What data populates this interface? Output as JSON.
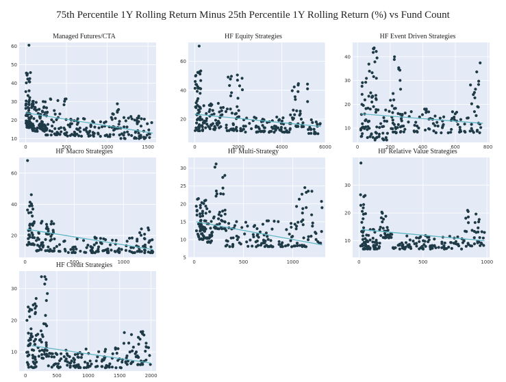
{
  "figure": {
    "title": "75th Percentile 1Y Rolling Return Minus 25th Percentile 1Y Rolling Return (%) vs Fund Count"
  },
  "colors": {
    "plot_bg": "#e5ebf6",
    "grid": "#ffffff",
    "points": "#1f3a47",
    "trend": "#5fb6c4"
  },
  "chart_data": [
    {
      "type": "scatter",
      "title": "Managed Futures/CTA",
      "xlim": [
        -80,
        1600
      ],
      "ylim": [
        8,
        62
      ],
      "xticks": [
        0,
        500,
        1000,
        1500
      ],
      "yticks": [
        10,
        20,
        30,
        40,
        50,
        60
      ],
      "trend": [
        [
          0,
          24
        ],
        [
          1560,
          13
        ]
      ],
      "clusters": [
        {
          "x": [
            0,
            60
          ],
          "y": [
            16,
            46
          ],
          "n": 60
        },
        {
          "x": 40,
          "y": 60.5,
          "n": 1
        },
        {
          "x": [
            60,
            240
          ],
          "y": [
            14,
            32
          ],
          "n": 70
        },
        {
          "x": [
            240,
            500
          ],
          "y": [
            12,
            32
          ],
          "n": 50
        },
        {
          "x": [
            500,
            1100
          ],
          "y": [
            11,
            21
          ],
          "n": 70
        },
        {
          "x": [
            1050,
            1150
          ],
          "y": [
            14,
            29
          ],
          "n": 15
        },
        {
          "x": [
            1150,
            1550
          ],
          "y": [
            10,
            23
          ],
          "n": 55
        }
      ]
    },
    {
      "type": "scatter",
      "title": "HF Equity Strategies",
      "xlim": [
        -300,
        6000
      ],
      "ylim": [
        4,
        73
      ],
      "xticks": [
        0,
        2000,
        4000,
        6000
      ],
      "yticks": [
        20,
        40,
        60
      ],
      "trend": [
        [
          0,
          23.5
        ],
        [
          5800,
          15
        ]
      ],
      "clusters": [
        {
          "x": [
            0,
            300
          ],
          "y": [
            12,
            55
          ],
          "n": 50
        },
        {
          "x": 200,
          "y": 70.5,
          "n": 1
        },
        {
          "x": [
            300,
            1200
          ],
          "y": [
            12,
            32
          ],
          "n": 50
        },
        {
          "x": [
            1200,
            2200
          ],
          "y": [
            12,
            52
          ],
          "n": 45
        },
        {
          "x": [
            2200,
            4400
          ],
          "y": [
            11,
            22
          ],
          "n": 70
        },
        {
          "x": [
            4400,
            5200
          ],
          "y": [
            14,
            45
          ],
          "n": 30
        },
        {
          "x": [
            5200,
            5800
          ],
          "y": [
            10,
            20
          ],
          "n": 20
        }
      ]
    },
    {
      "type": "scatter",
      "title": "HF Event Driven Strategies",
      "xlim": [
        -30,
        810
      ],
      "ylim": [
        4,
        46
      ],
      "xticks": [
        0,
        200,
        400,
        600,
        800
      ],
      "yticks": [
        10,
        20,
        30,
        40
      ],
      "trend": [
        [
          20,
          16
        ],
        [
          770,
          12
        ]
      ],
      "clusters": [
        {
          "x": [
            20,
            120
          ],
          "y": [
            6,
            44
          ],
          "n": 60
        },
        {
          "x": [
            100,
            190
          ],
          "y": [
            5,
            18
          ],
          "n": 25
        },
        {
          "x": [
            190,
            270
          ],
          "y": [
            8,
            43
          ],
          "n": 35
        },
        {
          "x": [
            270,
            700
          ],
          "y": [
            8,
            18
          ],
          "n": 70
        },
        {
          "x": [
            690,
            760
          ],
          "y": [
            8,
            38
          ],
          "n": 25
        }
      ]
    },
    {
      "type": "scatter",
      "title": "HF Macro Strategies",
      "xlim": [
        -60,
        1330
      ],
      "ylim": [
        6,
        70
      ],
      "xticks": [
        0,
        500,
        1000
      ],
      "yticks": [
        20,
        40,
        60
      ],
      "trend": [
        [
          20,
          24
        ],
        [
          1300,
          11
        ]
      ],
      "clusters": [
        {
          "x": [
            20,
            80
          ],
          "y": [
            14,
            47
          ],
          "n": 35
        },
        {
          "x": 25,
          "y": 68,
          "n": 1
        },
        {
          "x": [
            80,
            300
          ],
          "y": [
            10,
            30
          ],
          "n": 55
        },
        {
          "x": [
            300,
            1150
          ],
          "y": [
            9,
            19
          ],
          "n": 90
        },
        {
          "x": [
            1150,
            1300
          ],
          "y": [
            9,
            25
          ],
          "n": 30
        }
      ]
    },
    {
      "type": "scatter",
      "title": "HF Multi-Strategy",
      "xlim": [
        -60,
        1330
      ],
      "ylim": [
        5,
        33
      ],
      "xticks": [
        0,
        500,
        1000
      ],
      "yticks": [
        5,
        10,
        15,
        20,
        25,
        30
      ],
      "trend": [
        [
          20,
          15
        ],
        [
          1300,
          8.5
        ]
      ],
      "clusters": [
        {
          "x": [
            20,
            120
          ],
          "y": [
            10,
            22
          ],
          "n": 55
        },
        {
          "x": [
            120,
            200
          ],
          "y": [
            9,
            19
          ],
          "n": 25
        },
        {
          "x": [
            200,
            320
          ],
          "y": [
            13,
            32
          ],
          "n": 35
        },
        {
          "x": [
            320,
            1030
          ],
          "y": [
            8,
            16
          ],
          "n": 90
        },
        {
          "x": [
            1030,
            1300
          ],
          "y": [
            8,
            25
          ],
          "n": 40
        }
      ]
    },
    {
      "type": "scatter",
      "title": "HF Relative Value Strategies",
      "xlim": [
        -50,
        1020
      ],
      "ylim": [
        4,
        40
      ],
      "xticks": [
        0,
        500,
        1000
      ],
      "yticks": [
        10,
        20,
        30
      ],
      "trend": [
        [
          20,
          14
        ],
        [
          980,
          10
        ]
      ],
      "clusters": [
        {
          "x": [
            10,
            60
          ],
          "y": [
            7,
            29
          ],
          "n": 35
        },
        {
          "x": 15,
          "y": 38,
          "n": 1
        },
        {
          "x": [
            60,
            170
          ],
          "y": [
            7,
            15
          ],
          "n": 35
        },
        {
          "x": [
            170,
            260
          ],
          "y": [
            11,
            24
          ],
          "n": 30
        },
        {
          "x": [
            260,
            820
          ],
          "y": [
            7,
            12
          ],
          "n": 90
        },
        {
          "x": [
            820,
            980
          ],
          "y": [
            8,
            22
          ],
          "n": 35
        }
      ]
    },
    {
      "type": "scatter",
      "title": "HF Credit Strategies",
      "xlim": [
        -100,
        2080
      ],
      "ylim": [
        4,
        35.5
      ],
      "xticks": [
        0,
        500,
        1000,
        1500,
        2000
      ],
      "yticks": [
        10,
        20,
        30
      ],
      "trend": [
        [
          100,
          12
        ],
        [
          2000,
          6.5
        ]
      ],
      "clusters": [
        {
          "x": [
            20,
            180
          ],
          "y": [
            5,
            27
          ],
          "n": 55
        },
        {
          "x": [
            180,
            350
          ],
          "y": [
            8,
            34.5
          ],
          "n": 35
        },
        {
          "x": [
            350,
            1350
          ],
          "y": [
            5,
            11
          ],
          "n": 90
        },
        {
          "x": [
            1350,
            1550
          ],
          "y": [
            5,
            12
          ],
          "n": 15
        },
        {
          "x": [
            1550,
            2000
          ],
          "y": [
            6,
            17
          ],
          "n": 45
        }
      ]
    }
  ]
}
